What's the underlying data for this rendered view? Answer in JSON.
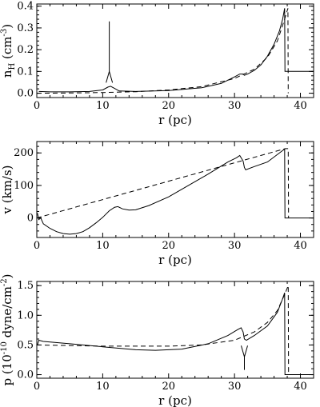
{
  "chart_data": [
    {
      "type": "line",
      "xlabel": "r (pc)",
      "ylabel_main": "n",
      "ylabel_sub": "H",
      "ylabel_unit": " (cm",
      "ylabel_unit_sup": "-3",
      "ylabel_unit_close": ")",
      "xlim": [
        0,
        42
      ],
      "ylim": [
        -0.02,
        0.41
      ],
      "x_ticks": [
        0,
        10,
        20,
        30,
        40
      ],
      "y_ticks": [
        0.0,
        0.1,
        0.2,
        0.3,
        0.4
      ],
      "y_tick_labels": [
        "0.0",
        "0.1",
        "0.2",
        "0.3",
        "0.4"
      ],
      "annotation_arrow": {
        "x": 11,
        "y_from": 0.33,
        "y_to": 0.1,
        "direction": "down"
      },
      "series": [
        {
          "style": "solid",
          "points": [
            [
              0.3,
              0.008
            ],
            [
              2,
              0.006
            ],
            [
              5,
              0.006
            ],
            [
              8,
              0.008
            ],
            [
              10,
              0.015
            ],
            [
              10.8,
              0.028
            ],
            [
              11.2,
              0.032
            ],
            [
              11.8,
              0.022
            ],
            [
              12.5,
              0.01
            ],
            [
              15,
              0.008
            ],
            [
              20,
              0.012
            ],
            [
              25,
              0.025
            ],
            [
              28,
              0.045
            ],
            [
              30,
              0.075
            ],
            [
              30.8,
              0.088
            ],
            [
              31.3,
              0.088
            ],
            [
              31.5,
              0.082
            ],
            [
              32,
              0.088
            ],
            [
              33,
              0.105
            ],
            [
              34,
              0.13
            ],
            [
              35,
              0.17
            ],
            [
              36,
              0.225
            ],
            [
              36.8,
              0.285
            ],
            [
              37.3,
              0.34
            ],
            [
              37.6,
              0.39
            ],
            [
              37.65,
              0.1
            ],
            [
              42,
              0.1
            ]
          ]
        },
        {
          "style": "dashed",
          "points": [
            [
              0,
              0.0
            ],
            [
              5,
              0.001
            ],
            [
              10,
              0.003
            ],
            [
              15,
              0.007
            ],
            [
              20,
              0.015
            ],
            [
              25,
              0.03
            ],
            [
              30,
              0.068
            ],
            [
              33,
              0.11
            ],
            [
              35,
              0.165
            ],
            [
              36.5,
              0.24
            ],
            [
              37.5,
              0.33
            ],
            [
              38.1,
              0.39
            ],
            [
              38.15,
              0.0
            ]
          ]
        }
      ]
    },
    {
      "type": "line",
      "xlabel": "r (pc)",
      "ylabel": "v (km/s)",
      "xlim": [
        0,
        42
      ],
      "ylim": [
        -60,
        235
      ],
      "x_ticks": [
        0,
        10,
        20,
        30,
        40
      ],
      "y_ticks": [
        0,
        100,
        200
      ],
      "y_tick_labels": [
        "0",
        "100",
        "200"
      ],
      "series": [
        {
          "style": "solid",
          "points": [
            [
              0.1,
              15
            ],
            [
              0.3,
              -5
            ],
            [
              0.6,
              0
            ],
            [
              1,
              -18
            ],
            [
              2,
              -32
            ],
            [
              3,
              -42
            ],
            [
              4,
              -48
            ],
            [
              5,
              -50
            ],
            [
              6,
              -48
            ],
            [
              7,
              -42
            ],
            [
              8,
              -30
            ],
            [
              9,
              -15
            ],
            [
              10,
              2
            ],
            [
              11,
              22
            ],
            [
              11.8,
              33
            ],
            [
              12.3,
              35
            ],
            [
              13,
              28
            ],
            [
              14,
              24
            ],
            [
              15,
              25
            ],
            [
              17,
              38
            ],
            [
              20,
              65
            ],
            [
              23,
              100
            ],
            [
              26,
              135
            ],
            [
              29,
              172
            ],
            [
              30.3,
              185
            ],
            [
              30.8,
              192
            ],
            [
              31.3,
              175
            ],
            [
              31.5,
              155
            ],
            [
              31.7,
              148
            ],
            [
              33,
              158
            ],
            [
              35,
              172
            ],
            [
              37.6,
              212
            ],
            [
              37.65,
              0
            ],
            [
              42,
              0
            ]
          ]
        },
        {
          "style": "dashed",
          "points": [
            [
              0,
              0
            ],
            [
              37.7,
              213
            ],
            [
              38.15,
              213
            ],
            [
              38.2,
              0
            ]
          ]
        }
      ]
    },
    {
      "type": "line",
      "xlabel": "r (pc)",
      "ylabel_main": "p (10",
      "ylabel_sup1": "-10",
      "ylabel_mid": " dyne/cm",
      "ylabel_sup2": "-2",
      "ylabel_close": ")",
      "xlim": [
        0,
        42
      ],
      "ylim": [
        -0.06,
        1.57
      ],
      "x_ticks": [
        0,
        10,
        20,
        30,
        40
      ],
      "y_ticks": [
        0.0,
        0.5,
        1.0,
        1.5
      ],
      "y_tick_labels": [
        "0.0",
        "0.5",
        "1.0",
        "1.5"
      ],
      "annotation_arrow": {
        "x": 31.5,
        "y_from": 0.08,
        "y_to": 0.3,
        "direction": "up"
      },
      "series": [
        {
          "style": "solid",
          "points": [
            [
              0.1,
              0.5
            ],
            [
              0.3,
              0.58
            ],
            [
              1,
              0.56
            ],
            [
              5,
              0.52
            ],
            [
              10,
              0.47
            ],
            [
              15,
              0.42
            ],
            [
              18,
              0.41
            ],
            [
              22,
              0.43
            ],
            [
              26,
              0.52
            ],
            [
              29,
              0.66
            ],
            [
              30.5,
              0.76
            ],
            [
              31,
              0.79
            ],
            [
              31.3,
              0.72
            ],
            [
              31.5,
              0.6
            ],
            [
              31.8,
              0.58
            ],
            [
              33,
              0.66
            ],
            [
              35,
              0.82
            ],
            [
              36.5,
              1.05
            ],
            [
              37.3,
              1.28
            ],
            [
              37.6,
              1.38
            ],
            [
              37.65,
              0.0
            ],
            [
              42,
              0.0
            ]
          ]
        },
        {
          "style": "dashed",
          "points": [
            [
              0,
              0.5
            ],
            [
              10,
              0.48
            ],
            [
              20,
              0.48
            ],
            [
              25,
              0.5
            ],
            [
              30,
              0.58
            ],
            [
              33,
              0.72
            ],
            [
              35,
              0.88
            ],
            [
              36.5,
              1.08
            ],
            [
              37.6,
              1.35
            ],
            [
              38.15,
              1.5
            ],
            [
              38.2,
              0.0
            ]
          ]
        }
      ]
    }
  ]
}
